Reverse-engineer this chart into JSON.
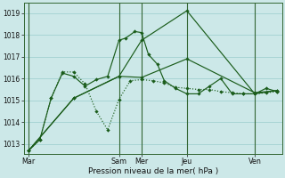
{
  "bg_color": "#cce8e8",
  "grid_color": "#99cccc",
  "line_color": "#1a5c1a",
  "xlabel": "Pression niveau de la mer( hPa )",
  "ylim": [
    1012.55,
    1019.45
  ],
  "yticks": [
    1013,
    1014,
    1015,
    1016,
    1017,
    1018,
    1019
  ],
  "day_labels": [
    "Mar",
    "Sam",
    "Mer",
    "Jeu",
    "Ven"
  ],
  "day_positions": [
    0,
    4,
    5,
    7,
    10
  ],
  "vline_positions": [
    0,
    4,
    5,
    7,
    10
  ],
  "xmin": -0.2,
  "xmax": 11.2,
  "lines": [
    {
      "style": "dotted",
      "x": [
        0,
        0.5,
        1.0,
        1.5,
        2.0,
        2.5,
        3.0,
        3.5,
        4.0,
        4.5,
        5.0,
        5.5,
        6.0,
        6.5,
        7.0,
        7.5,
        8.0,
        8.5,
        9.0,
        9.5,
        10.0,
        10.5,
        11.0
      ],
      "y": [
        1012.7,
        1013.2,
        1015.1,
        1016.3,
        1016.3,
        1015.75,
        1014.5,
        1013.65,
        1015.05,
        1015.9,
        1015.95,
        1015.9,
        1015.8,
        1015.6,
        1015.55,
        1015.5,
        1015.5,
        1015.4,
        1015.35,
        1015.3,
        1015.3,
        1015.35,
        1015.4
      ]
    },
    {
      "style": "solid",
      "x": [
        0,
        0.5,
        1.0,
        1.5,
        2.0,
        2.5,
        3.0,
        3.5,
        4.0,
        4.3,
        4.7,
        5.0,
        5.3,
        5.7,
        6.0,
        6.5,
        7.0,
        7.5,
        8.0,
        8.5,
        9.0,
        9.5,
        10.0,
        10.5,
        11.0
      ],
      "y": [
        1012.7,
        1013.2,
        1015.1,
        1016.25,
        1016.1,
        1015.65,
        1015.95,
        1016.1,
        1017.75,
        1017.85,
        1018.15,
        1018.1,
        1017.1,
        1016.65,
        1015.9,
        1015.55,
        1015.3,
        1015.3,
        1015.65,
        1016.0,
        1015.3,
        1015.3,
        1015.3,
        1015.55,
        1015.4
      ]
    },
    {
      "style": "solid",
      "x": [
        0,
        2.0,
        4.0,
        5.0,
        7.0,
        10.0,
        11.0
      ],
      "y": [
        1012.7,
        1015.1,
        1016.1,
        1016.05,
        1016.9,
        1015.35,
        1015.45
      ]
    },
    {
      "style": "solid",
      "x": [
        0,
        2.0,
        4.0,
        5.0,
        7.0,
        10.0,
        11.0
      ],
      "y": [
        1012.7,
        1015.1,
        1016.1,
        1017.75,
        1019.1,
        1015.3,
        1015.45
      ]
    }
  ]
}
